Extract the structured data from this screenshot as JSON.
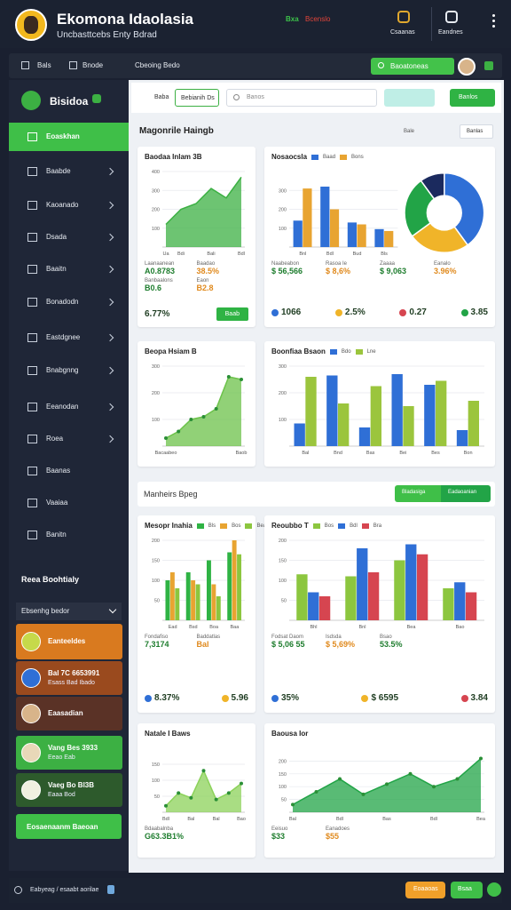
{
  "header": {
    "title": "Ekomona Idaolasia",
    "subtitle": "Uncbasttcebs Enty Bdrad",
    "status": [
      "Bxa",
      "Bcenslo"
    ],
    "actions": [
      "Csaanas",
      "Eandnes"
    ]
  },
  "nav": {
    "links": [
      "Bals",
      "Bnode"
    ],
    "label": "Cbeoing Bedo",
    "search": "Baoatoneas"
  },
  "sidebar": {
    "brand": "Bisidoa",
    "active": "Eoaskhan",
    "items": [
      "Baabde",
      "Kaoanado",
      "Dsada",
      "Baaitn",
      "Bonadodn",
      "Eastdgnee",
      "Bnabgnng",
      "Eeanodan",
      "Roea",
      "Baanas",
      "Vaaiaa",
      "Banitn"
    ],
    "section": "Reea Boohtialy",
    "dropdown": "Ebsenhg bedor",
    "cards": [
      {
        "title": "Eanteeldes"
      },
      {
        "title": "Bal 7C 6653991",
        "subtitle": "Esass Bad Ibado"
      },
      {
        "title": "Eaasadian"
      },
      {
        "title": "Vang Bes 3933",
        "subtitle": "Eeao Eab"
      },
      {
        "title": "Vaeg Bo Bl3B",
        "subtitle": "Eaaa Bod"
      }
    ],
    "button": "Eosaenaanm Baeoan"
  },
  "toolbar": {
    "label": "Baba",
    "tab": "Bebianih Ds",
    "search": "Banos",
    "button": "Banlos"
  },
  "sections": [
    {
      "title": "Magonrile Haingb",
      "links": [
        "Bale",
        "Banlas"
      ]
    },
    {
      "title": "Manheirs Bpeg",
      "links": [
        "Bladasiga",
        "Eadaoanian"
      ]
    }
  ],
  "cards": [
    {
      "title": "Baodaa Inlam 3B",
      "charts": [
        {
          "type": "area",
          "color": "#3cb043",
          "categories": [
            "Ua",
            "Bdi",
            null,
            "Bali",
            null,
            "Bdl"
          ],
          "values": [
            120,
            200,
            230,
            310,
            260,
            370
          ],
          "ylim": [
            0,
            400
          ],
          "yticks": [
            100,
            200,
            300,
            400
          ]
        }
      ],
      "stats": [
        {
          "label": "Laanaanean",
          "value": "A0.8783"
        },
        {
          "label": "Baadao",
          "value": "38.5%"
        },
        {
          "label": "Banbaalons",
          "value": "B0.6"
        },
        {
          "label": "Eaon",
          "value": "B2.8"
        }
      ],
      "kpis": [
        "6.77%"
      ],
      "button": "Baab"
    },
    {
      "title": "Nosaocsla",
      "charts": [
        {
          "type": "bar",
          "categories": [
            "Bnl",
            "Bdl",
            "Bud",
            "Bls"
          ],
          "series": [
            {
              "name": "Baad",
              "color": "#2f6fd6",
              "values": [
                140,
                320,
                130,
                95
              ]
            },
            {
              "name": "Bons",
              "color": "#e8a431",
              "values": [
                310,
                200,
                120,
                85
              ]
            }
          ],
          "ylim": [
            0,
            400
          ],
          "yticks": [
            100,
            200,
            300
          ]
        },
        {
          "type": "pie",
          "values": [
            40,
            25,
            25,
            10
          ],
          "colors": [
            "#2f6fd6",
            "#f0b429",
            "#22a447",
            "#1b2a5e"
          ]
        }
      ],
      "stats": [
        {
          "label": "Naabeabon",
          "value": "$ 56,566"
        },
        {
          "label": "Rasoa Ie",
          "value": "$ 8,6%"
        },
        {
          "label": "Zaaaa",
          "value": "$ 9,063"
        },
        {
          "label": "Eanalo",
          "value": "3.96%"
        }
      ],
      "kpis": [
        "1066",
        "2.5%",
        "0.27",
        "3.85"
      ]
    },
    {
      "title": "Beopa Hsiam B",
      "charts": [
        {
          "type": "area",
          "color": "#6cc24a",
          "markers": true,
          "categories": [
            "Bacaabeo",
            null,
            null,
            null,
            null,
            null,
            "Baob"
          ],
          "values": [
            30,
            55,
            100,
            110,
            140,
            260,
            250
          ],
          "ylim": [
            0,
            300
          ],
          "yticks": [
            100,
            200,
            300
          ]
        }
      ]
    },
    {
      "title": "Boonfiaa Bsaon",
      "charts": [
        {
          "type": "bar",
          "categories": [
            "Bal",
            "Bnd",
            "Bas",
            "Bei",
            "Bes",
            "Bon"
          ],
          "series": [
            {
              "name": "Bdo",
              "color": "#2f6fd6",
              "values": [
                85,
                265,
                70,
                270,
                230,
                60
              ]
            },
            {
              "name": "Lne",
              "color": "#9bc53d",
              "values": [
                260,
                160,
                225,
                150,
                245,
                170
              ]
            }
          ],
          "ylim": [
            0,
            300
          ],
          "yticks": [
            100,
            200,
            300
          ]
        }
      ]
    },
    {
      "title": "Mesopr Inahia",
      "charts": [
        {
          "type": "bar",
          "categories": [
            "Ead",
            "Bsd",
            "Boa",
            "Baa"
          ],
          "series": [
            {
              "name": "Bls",
              "color": "#2fb344",
              "values": [
                100,
                120,
                150,
                170
              ]
            },
            {
              "name": "Bos",
              "color": "#e8a431",
              "values": [
                120,
                100,
                90,
                200
              ]
            },
            {
              "name": "Bea",
              "color": "#8cc63f",
              "values": [
                80,
                90,
                60,
                165
              ]
            }
          ],
          "ylim": [
            0,
            200
          ],
          "yticks": [
            50,
            100,
            150,
            200
          ]
        }
      ],
      "stats": [
        {
          "label": "Fondafiso",
          "value": "7,3174"
        },
        {
          "label": "Baddatlas",
          "value": "Bal"
        }
      ],
      "kpis": [
        "8.37%",
        "5.96"
      ]
    },
    {
      "title": "Reoubbo T",
      "charts": [
        {
          "type": "bar",
          "categories": [
            "Bhl",
            "Bnl",
            "Bea",
            "Bao"
          ],
          "series": [
            {
              "name": "Bos",
              "color": "#8cc63f",
              "values": [
                115,
                110,
                150,
                80
              ]
            },
            {
              "name": "Bdl",
              "color": "#2f6fd6",
              "values": [
                70,
                180,
                190,
                95
              ]
            },
            {
              "name": "Bra",
              "color": "#d64550",
              "values": [
                60,
                120,
                165,
                70
              ]
            }
          ],
          "ylim": [
            0,
            200
          ],
          "yticks": [
            50,
            100,
            150,
            200
          ]
        }
      ],
      "stats": [
        {
          "label": "Fodsat Daom",
          "value": "$ 5,06 55"
        },
        {
          "label": "Isdsda",
          "value": "$ 5,69%"
        },
        {
          "label": "Bsao",
          "value": "53.5%"
        }
      ],
      "kpis": [
        "35%",
        "$ 6595",
        "3.84"
      ]
    },
    {
      "title": "Natale I Baws",
      "charts": [
        {
          "type": "area",
          "color": "#8cd25a",
          "markers": true,
          "categories": [
            "Bdl",
            null,
            "Bal",
            null,
            "Bal",
            null,
            "Bao"
          ],
          "values": [
            20,
            60,
            45,
            130,
            40,
            60,
            90
          ],
          "ylim": [
            0,
            200
          ],
          "yticks": [
            50,
            100,
            150
          ]
        }
      ],
      "stats": [
        {
          "label": "Bdaabalnba",
          "value": "G63.3B1%"
        }
      ]
    },
    {
      "title": "Baousa Ior",
      "charts": [
        {
          "type": "area",
          "color": "#22a447",
          "markers": true,
          "categories": [
            "Bal",
            null,
            "Bdl",
            null,
            "Bas",
            null,
            "Bdl",
            null,
            "Bea"
          ],
          "values": [
            30,
            80,
            130,
            70,
            110,
            150,
            100,
            130,
            210
          ],
          "ylim": [
            0,
            250
          ],
          "yticks": [
            50,
            100,
            150,
            200
          ]
        }
      ],
      "stats": [
        {
          "label": "Eeisuo",
          "value": "$33"
        },
        {
          "label": "Eanadoes",
          "value": "$55"
        }
      ]
    }
  ],
  "footer": {
    "text": "Eabyeag / esaabt aorilae",
    "buttons": [
      "Eoaaoas",
      "Bsaa"
    ]
  }
}
